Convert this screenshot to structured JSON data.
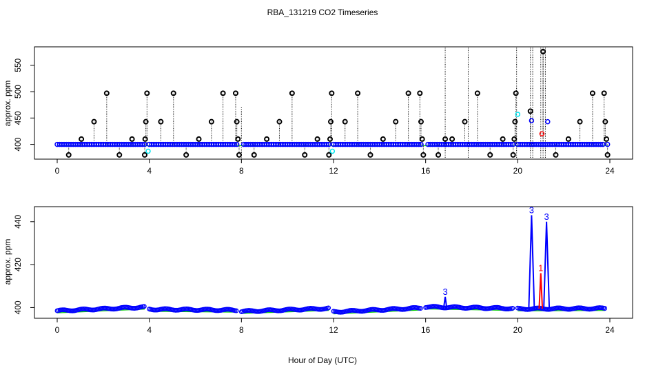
{
  "title": "RBA_131219  CO2 Timeseries",
  "xlabel": "Hour of Day (UTC)",
  "colors": {
    "black": "#000000",
    "blue": "#0000ff",
    "cyan": "#00e5ee",
    "red": "#ff0000",
    "green": "#00cc00"
  },
  "chart_data": [
    {
      "type": "scatter",
      "name": "top-panel",
      "ylabel": "approx. ppm",
      "xlim": [
        0,
        24
      ],
      "ylim": [
        372,
        585
      ],
      "xticks": [
        0,
        4,
        8,
        12,
        16,
        20,
        24
      ],
      "yticks": [
        400,
        450,
        500,
        550
      ],
      "baseline": 400,
      "black_values": [
        [
          0.5,
          380
        ],
        [
          1.05,
          410
        ],
        [
          1.6,
          443
        ],
        [
          2.15,
          497
        ],
        [
          2.7,
          380
        ],
        [
          3.25,
          410
        ],
        [
          3.8,
          380
        ],
        [
          3.82,
          410
        ],
        [
          3.85,
          443
        ],
        [
          3.9,
          497
        ],
        [
          4.5,
          443
        ],
        [
          5.05,
          497
        ],
        [
          5.6,
          380
        ],
        [
          6.15,
          410
        ],
        [
          6.7,
          443
        ],
        [
          7.2,
          497
        ],
        [
          7.75,
          497
        ],
        [
          7.8,
          443
        ],
        [
          7.85,
          410
        ],
        [
          7.9,
          380
        ],
        [
          8.55,
          380
        ],
        [
          9.1,
          410
        ],
        [
          9.65,
          443
        ],
        [
          10.2,
          497
        ],
        [
          10.75,
          380
        ],
        [
          11.3,
          410
        ],
        [
          11.8,
          380
        ],
        [
          11.85,
          410
        ],
        [
          11.88,
          443
        ],
        [
          11.92,
          497
        ],
        [
          12.5,
          443
        ],
        [
          13.05,
          497
        ],
        [
          13.6,
          380
        ],
        [
          14.15,
          410
        ],
        [
          14.7,
          443
        ],
        [
          15.25,
          497
        ],
        [
          15.75,
          497
        ],
        [
          15.8,
          443
        ],
        [
          15.85,
          410
        ],
        [
          15.9,
          380
        ],
        [
          16.55,
          380
        ],
        [
          16.85,
          410
        ],
        [
          17.15,
          410
        ],
        [
          17.7,
          443
        ],
        [
          18.25,
          497
        ],
        [
          18.8,
          380
        ],
        [
          19.35,
          410
        ],
        [
          19.8,
          380
        ],
        [
          19.85,
          410
        ],
        [
          19.88,
          443
        ],
        [
          19.92,
          497
        ],
        [
          20.55,
          463
        ],
        [
          21.1,
          576
        ],
        [
          21.65,
          380
        ],
        [
          22.2,
          410
        ],
        [
          22.7,
          443
        ],
        [
          23.25,
          497
        ],
        [
          23.75,
          497
        ],
        [
          23.8,
          443
        ],
        [
          23.85,
          410
        ],
        [
          23.9,
          380
        ]
      ],
      "blue_values": [
        [
          20.6,
          445
        ],
        [
          21.3,
          443
        ]
      ],
      "cyan_values": [
        [
          3.95,
          387
        ],
        [
          11.95,
          387
        ],
        [
          20.0,
          457
        ]
      ],
      "red_values": [
        [
          21.05,
          420
        ]
      ],
      "spikes": [
        16.85,
        17.85,
        19.95,
        20.55,
        20.65,
        21.0,
        21.1,
        21.2,
        8.0
      ],
      "gaps": [
        [
          3.82,
          3.95
        ],
        [
          7.85,
          8.0
        ],
        [
          11.85,
          11.95
        ],
        [
          15.85,
          16.0
        ],
        [
          19.85,
          20.0
        ],
        [
          23.8,
          23.9
        ]
      ]
    },
    {
      "type": "line",
      "name": "bottom-panel",
      "ylabel": "approx. ppm",
      "xlim": [
        0,
        24
      ],
      "ylim": [
        395,
        447
      ],
      "xticks": [
        0,
        4,
        8,
        12,
        16,
        20,
        24
      ],
      "yticks": [
        400,
        420,
        440
      ],
      "segments": [
        {
          "start": 0.0,
          "end": 3.8,
          "from": 398.5,
          "to": 400.2
        },
        {
          "start": 4.0,
          "end": 7.8,
          "from": 399.2,
          "to": 398.8
        },
        {
          "start": 8.0,
          "end": 11.8,
          "from": 398.2,
          "to": 399.6
        },
        {
          "start": 12.0,
          "end": 15.8,
          "from": 398.0,
          "to": 399.8
        },
        {
          "start": 16.0,
          "end": 19.8,
          "from": 400.3,
          "to": 399.6
        },
        {
          "start": 20.0,
          "end": 23.8,
          "from": 399.4,
          "to": 399.6
        }
      ],
      "peaks": [
        {
          "x": 16.85,
          "y": 405,
          "label": "3",
          "color": "blue"
        },
        {
          "x": 20.6,
          "y": 443,
          "label": "3",
          "color": "blue"
        },
        {
          "x": 21.25,
          "y": 440,
          "label": "3",
          "color": "blue"
        },
        {
          "x": 21.0,
          "y": 416,
          "label": "1",
          "color": "red"
        }
      ]
    }
  ]
}
